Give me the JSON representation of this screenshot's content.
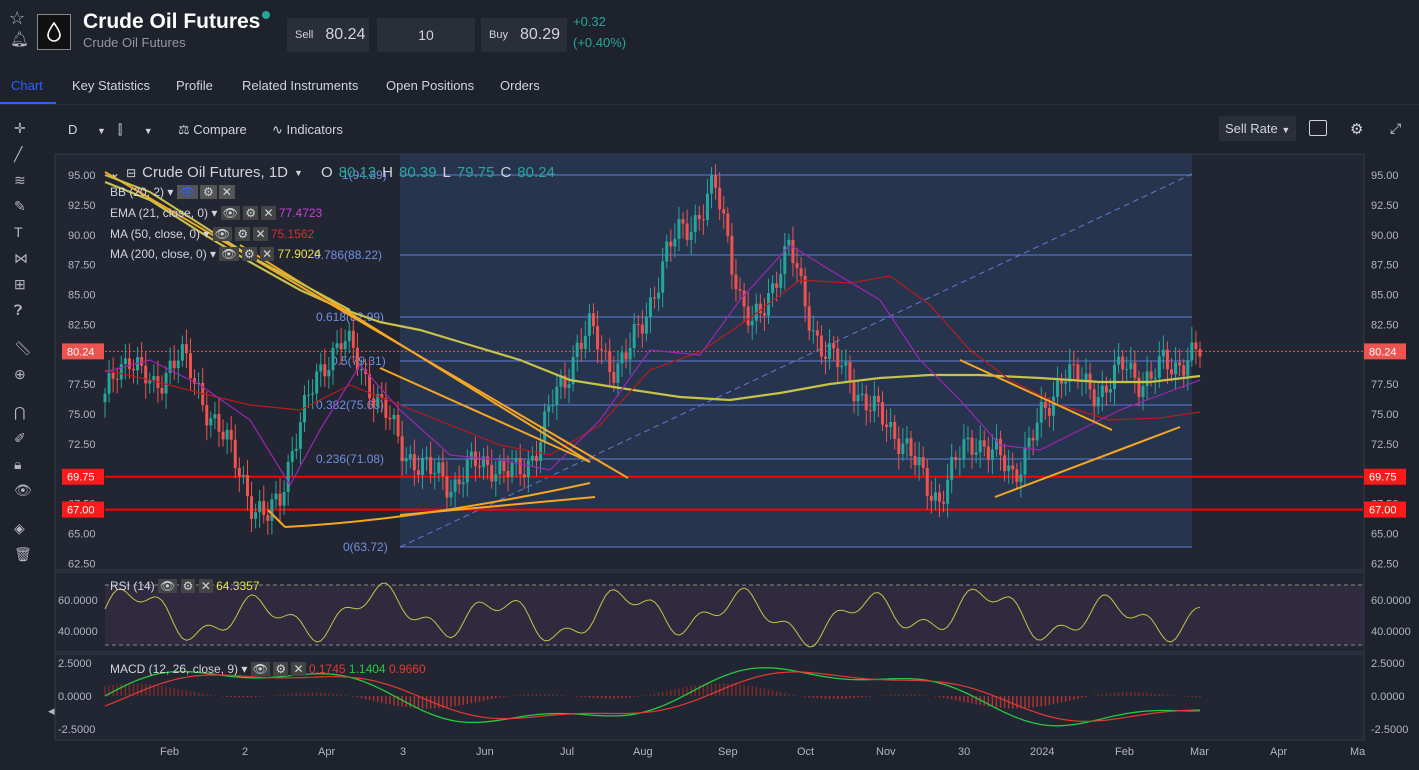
{
  "header": {
    "title": "Crude Oil Futures",
    "subtitle": "Crude Oil Futures",
    "sell_label": "Sell",
    "sell_price": "80.24",
    "quantity": "10",
    "buy_label": "Buy",
    "buy_price": "80.29",
    "change_abs": "+0.32",
    "change_pct": "(+0.40%)"
  },
  "tabs": [
    "Chart",
    "Key Statistics",
    "Profile",
    "Related Instruments",
    "Open Positions",
    "Orders"
  ],
  "toolbar": {
    "interval": "D",
    "compare": "Compare",
    "indicators": "Indicators",
    "sell_rate": "Sell Rate"
  },
  "legend": {
    "symbol": "Crude Oil Futures, 1D",
    "o_label": "O",
    "o": "80.13",
    "h_label": "H",
    "h": "80.39",
    "l_label": "L",
    "l": "79.75",
    "c_label": "C",
    "c": "80.24",
    "bb": "BB (20, 2)",
    "ema": "EMA (21, close, 0)",
    "ema_val": "77.4723",
    "ma50": "MA (50, close, 0)",
    "ma50_val": "75.1562",
    "ma200": "MA (200, close, 0)",
    "ma200_val": "77.9024",
    "rsi": "RSI (14)",
    "rsi_val": "64.3357",
    "macd": "MACD (12, 26, close, 9)",
    "macd_v1": "0.1745",
    "macd_v2": "1.1404",
    "macd_v3": "0.9660"
  },
  "fib": [
    {
      "text": "1(94.89)"
    },
    {
      "text": "0.786(88.22)"
    },
    {
      "text": "0.618(82.99)"
    },
    {
      "text": "0.5(79.31)"
    },
    {
      "text": "0.382(75.63)"
    },
    {
      "text": "0.236(71.08)"
    },
    {
      "text": "0(63.72)"
    }
  ],
  "colors": {
    "up": "#26a69a",
    "down": "#ef5350",
    "ema": "#9c27b0",
    "ma50": "#b71c1c",
    "ma200": "#c6c24a",
    "fib": "#5c7bd1",
    "trend": "#f5a623",
    "hline": "#ff0000"
  },
  "chart_data": {
    "type": "candlestick",
    "price_axis": [
      "95.00",
      "92.50",
      "90.00",
      "87.50",
      "85.00",
      "82.50",
      "80.00",
      "77.50",
      "75.00",
      "72.50",
      "70.00",
      "67.50",
      "65.00",
      "62.50"
    ],
    "x_labels": [
      "Feb",
      "2",
      "Apr",
      "3",
      "Jun",
      "Jul",
      "Aug",
      "Sep",
      "Oct",
      "Nov",
      "30",
      "2024",
      "Feb",
      "Mar",
      "Apr",
      "Ma"
    ],
    "current_price": "80.24",
    "h_lines": [
      "69.75",
      "67.00"
    ],
    "rsi_axis": [
      "60.0000",
      "40.0000"
    ],
    "macd_axis": [
      "2.5000",
      "0.0000",
      "-2.5000"
    ],
    "price_path": [
      76,
      79,
      80,
      78,
      77,
      79,
      80,
      78,
      76,
      74,
      72,
      70,
      67,
      66,
      68,
      72,
      75,
      78,
      80,
      81,
      80,
      78,
      76,
      74,
      72,
      71,
      70,
      70,
      69,
      70,
      71,
      71,
      70,
      70,
      71,
      73,
      76,
      78,
      81,
      82,
      80,
      79,
      80,
      82,
      85,
      88,
      90,
      91,
      92,
      94,
      90,
      85,
      82,
      84,
      87,
      89,
      85,
      82,
      80,
      79,
      78,
      76,
      75,
      74,
      73,
      71,
      69,
      68,
      70,
      72,
      73,
      72,
      71,
      70,
      72,
      74,
      76,
      79,
      78,
      77,
      77,
      78,
      79,
      78,
      78,
      79,
      79,
      80,
      80
    ]
  }
}
